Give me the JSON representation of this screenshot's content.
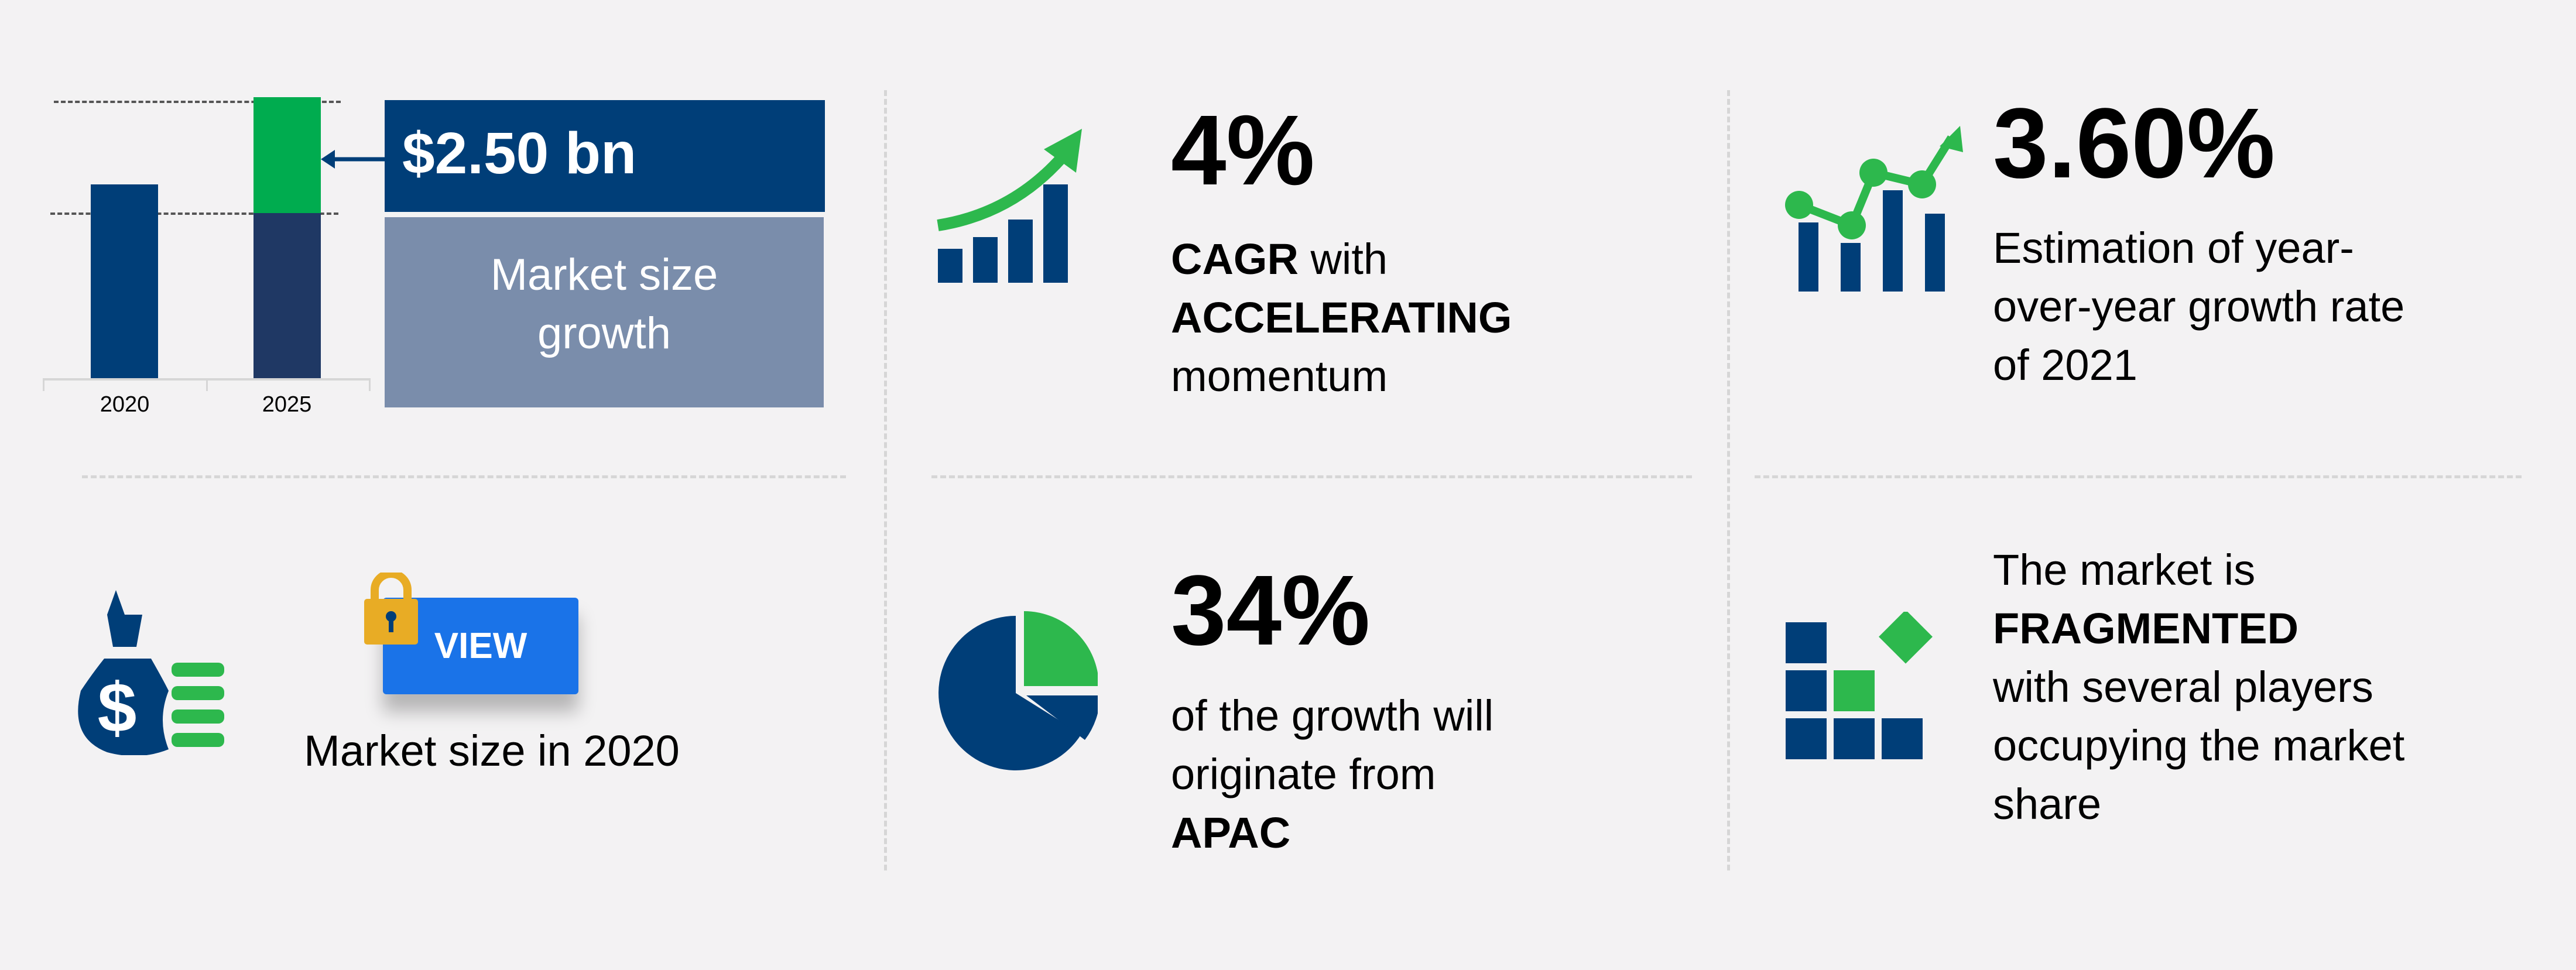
{
  "colors": {
    "navy": "#003e78",
    "dark_navy": "#1f3864",
    "green": "#00ac4f",
    "icon_green": "#2db84d",
    "slate": "#7a8dab",
    "button_blue": "#1a73e8",
    "lock_gold": "#e8ac25",
    "background": "#f3f2f3"
  },
  "chart_data": {
    "type": "bar",
    "stacked": true,
    "categories": [
      "2020",
      "2025"
    ],
    "annotation": "$2.50 bn",
    "increment_bn": 2.5,
    "series": [
      {
        "values_shown": "base market size (not printed)"
      },
      {
        "values_shown": "growth 2020-2025"
      }
    ]
  },
  "growth_panel": {
    "value": "$2.50 bn",
    "label": "Market size growth"
  },
  "market_size_2020": {
    "button": "VIEW",
    "label": "Market size in 2020",
    "icons": [
      "money-bag-icon",
      "lock-icon"
    ]
  },
  "cagr": {
    "value": "4%",
    "line1_bold": "CAGR",
    "line1_rest": " with",
    "line2": "ACCELERATING",
    "line3": "momentum",
    "icon": "rising-bar-chart-icon"
  },
  "yoy": {
    "value": "3.60%",
    "lines": [
      "Estimation of year-",
      "over-year growth rate",
      "of 2021"
    ],
    "icon": "line-bar-chart-icon"
  },
  "region": {
    "value": "34%",
    "lines": [
      "of the growth will",
      "originate from"
    ],
    "region": "APAC",
    "share_fraction": 0.34,
    "icon": "pie-chart-icon"
  },
  "landscape": {
    "line1": "The market is",
    "line2": "FRAGMENTED",
    "lines": [
      "with several players",
      "occupying the market",
      "share"
    ],
    "icon": "fragmented-blocks-icon"
  }
}
